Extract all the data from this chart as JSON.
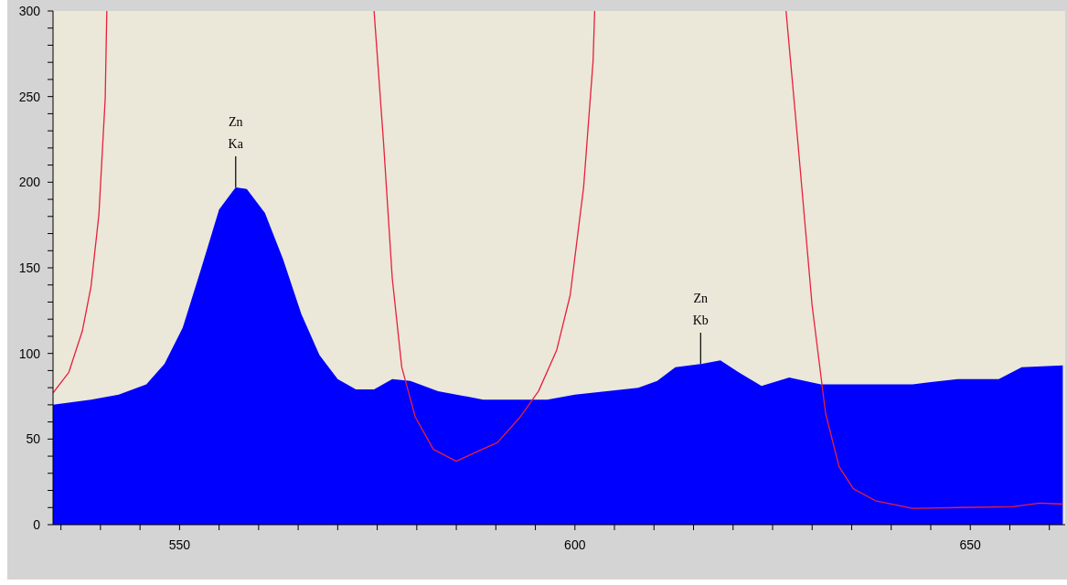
{
  "chart_data": {
    "type": "area",
    "xlim": [
      534,
      662
    ],
    "ylim": [
      0,
      300
    ],
    "xticks": [
      {
        "value": 535,
        "label": null
      },
      {
        "value": 540,
        "label": null
      },
      {
        "value": 545,
        "label": null
      },
      550,
      {
        "value": 555,
        "label": null
      },
      {
        "value": 560,
        "label": null
      },
      {
        "value": 565,
        "label": null
      },
      {
        "value": 570,
        "label": null
      },
      {
        "value": 575,
        "label": null
      },
      {
        "value": 580,
        "label": null
      },
      {
        "value": 585,
        "label": null
      },
      {
        "value": 590,
        "label": null
      },
      {
        "value": 595,
        "label": null
      },
      600,
      {
        "value": 605,
        "label": null
      },
      {
        "value": 610,
        "label": null
      },
      {
        "value": 615,
        "label": null
      },
      {
        "value": 620,
        "label": null
      },
      {
        "value": 625,
        "label": null
      },
      {
        "value": 630,
        "label": null
      },
      {
        "value": 635,
        "label": null
      },
      {
        "value": 640,
        "label": null
      },
      {
        "value": 645,
        "label": null
      },
      650,
      {
        "value": 655,
        "label": null
      },
      {
        "value": 660,
        "label": null
      }
    ],
    "yticks": [
      0,
      {
        "value": 10,
        "label": null
      },
      {
        "value": 20,
        "label": null
      },
      {
        "value": 30,
        "label": null
      },
      {
        "value": 40,
        "label": null
      },
      50,
      {
        "value": 60,
        "label": null
      },
      {
        "value": 70,
        "label": null
      },
      {
        "value": 80,
        "label": null
      },
      {
        "value": 90,
        "label": null
      },
      100,
      {
        "value": 110,
        "label": null
      },
      {
        "value": 120,
        "label": null
      },
      {
        "value": 130,
        "label": null
      },
      {
        "value": 140,
        "label": null
      },
      150,
      {
        "value": 160,
        "label": null
      },
      {
        "value": 170,
        "label": null
      },
      {
        "value": 180,
        "label": null
      },
      {
        "value": 190,
        "label": null
      },
      200,
      {
        "value": 210,
        "label": null
      },
      {
        "value": 220,
        "label": null
      },
      {
        "value": 230,
        "label": null
      },
      {
        "value": 240,
        "label": null
      },
      250,
      {
        "value": 260,
        "label": null
      },
      {
        "value": 270,
        "label": null
      },
      {
        "value": 280,
        "label": null
      },
      {
        "value": 290,
        "label": null
      },
      300
    ],
    "grid": false,
    "series": [
      {
        "type": "area",
        "color": "#0000ff",
        "x": [
          534,
          538.8,
          542.3,
          545.8,
          548.1,
          550.4,
          552.7,
          555,
          557.1,
          558.5,
          560.8,
          563.1,
          565.4,
          567.7,
          570,
          572.3,
          574.6,
          576.9,
          579.2,
          582.7,
          588.4,
          596.5,
          600,
          608,
          610.4,
          612.7,
          616.1,
          618.4,
          620.7,
          623.6,
          627.1,
          631.1,
          642.7,
          648.4,
          653.6,
          656.5,
          661.7
        ],
        "values": [
          70,
          73,
          76,
          82,
          94,
          115,
          149,
          184,
          197,
          196,
          182,
          155,
          123,
          99,
          85,
          79,
          79,
          85,
          84,
          78,
          73,
          73,
          76,
          80,
          84,
          92,
          94,
          96,
          89,
          81,
          86,
          82,
          82,
          85,
          85,
          92,
          93
        ]
      },
      {
        "type": "line",
        "color": "#e8203a",
        "x": [
          534,
          536,
          537.7,
          538.8,
          539.8,
          540.6,
          540.8,
          557,
          574.6,
          575.8,
          576.9,
          578.1,
          579.8,
          582.1,
          585,
          587.3,
          590.2,
          593.1,
          595.4,
          597.7,
          599.4,
          601.1,
          602.3,
          602.5,
          615,
          626.7,
          628.2,
          630,
          631.7,
          633.4,
          635.2,
          638,
          642.7,
          648.4,
          655.3,
          658.8,
          661.7
        ],
        "values": [
          77,
          89,
          113,
          139,
          181,
          249,
          300,
          null,
          300,
          223,
          144,
          92,
          63,
          44,
          37,
          42,
          48,
          63,
          78,
          102,
          134,
          197,
          271,
          300,
          null,
          300,
          223,
          128,
          65,
          34,
          21,
          14,
          9.5,
          10,
          10.5,
          12.6,
          12
        ]
      }
    ],
    "annotations": [
      {
        "text": "Zn\nKa",
        "x": 557.1,
        "y": 197
      },
      {
        "text": "Zn\nKb",
        "x": 615.9,
        "y": 94
      }
    ]
  }
}
